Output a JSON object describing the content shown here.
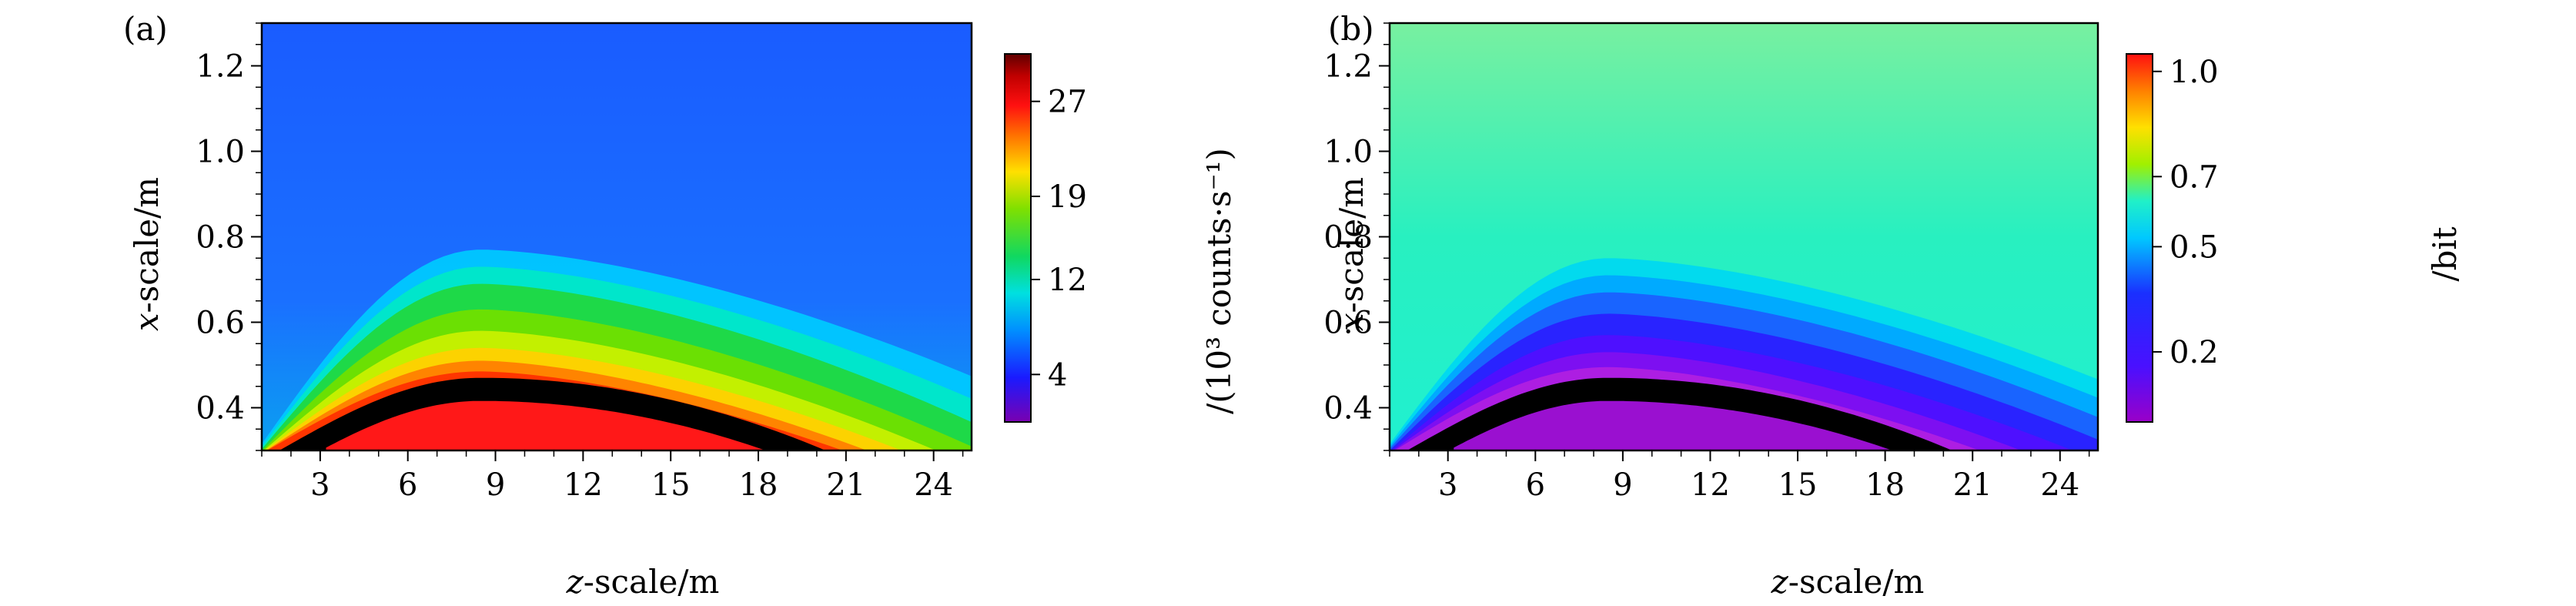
{
  "chart_data": [
    {
      "type": "heatmap",
      "panel_label": "(a)",
      "xlabel_italic": "z",
      "xlabel_rest": "-scale/m",
      "ylabel_italic": "x",
      "ylabel_rest": "-scale/m",
      "xlim": [
        1,
        25.3
      ],
      "ylim": [
        0.3,
        1.3
      ],
      "xticks": [
        3,
        6,
        9,
        12,
        15,
        18,
        21,
        24
      ],
      "yticks": [
        0.4,
        0.6,
        0.8,
        1.0,
        1.2
      ],
      "xtick_labels": [
        "3",
        "6",
        "9",
        "12",
        "15",
        "18",
        "21",
        "24"
      ],
      "ytick_labels": [
        "0.4",
        "0.6",
        "0.8",
        "1.0",
        "1.2"
      ],
      "colorbar": {
        "label": "/(10³ counts·s⁻¹)",
        "ticks": [
          4,
          12,
          19,
          27
        ],
        "tick_labels": [
          "4",
          "12",
          "19",
          "27"
        ],
        "range": [
          0,
          31
        ],
        "colormap": "rainbow-violet-to-darkred"
      },
      "field": {
        "description_values": "counting rate, peak (red) beneath the black boundary curve, decaying with height",
        "boundary_curve": {
          "z_start": 1.6,
          "z_peak": 8.5,
          "x_peak": 0.47,
          "z_end": 20.3,
          "x_end": 0.3
        },
        "inner_value": 24,
        "background_value": 3.5
      }
    },
    {
      "type": "heatmap",
      "panel_label": "(b)",
      "xlabel_italic": "z",
      "xlabel_rest": "-scale/m",
      "ylabel_italic": "x",
      "ylabel_rest": "-scale/m",
      "xlim": [
        1,
        25.3
      ],
      "ylim": [
        0.3,
        1.3
      ],
      "xticks": [
        3,
        6,
        9,
        12,
        15,
        18,
        21,
        24
      ],
      "yticks": [
        0.4,
        0.6,
        0.8,
        1.0,
        1.2
      ],
      "xtick_labels": [
        "3",
        "6",
        "9",
        "12",
        "15",
        "18",
        "21",
        "24"
      ],
      "ytick_labels": [
        "0.4",
        "0.6",
        "0.8",
        "1.0",
        "1.2"
      ],
      "colorbar": {
        "label": "/bit",
        "ticks": [
          0.2,
          0.5,
          0.7,
          1.0
        ],
        "tick_labels": [
          "0.2",
          "0.5",
          "0.7",
          "1.0"
        ],
        "range": [
          0,
          1.05
        ],
        "colormap": "rainbow-violet-to-red"
      },
      "field": {
        "description_values": "information value, low (violet) beneath the black boundary curve, rising to ~0.6 at the top",
        "boundary_curve": {
          "z_start": 1.6,
          "z_peak": 8.5,
          "x_peak": 0.47,
          "z_end": 20.3,
          "x_end": 0.3
        },
        "inner_value": 0.05,
        "background_value": 0.58
      }
    }
  ]
}
